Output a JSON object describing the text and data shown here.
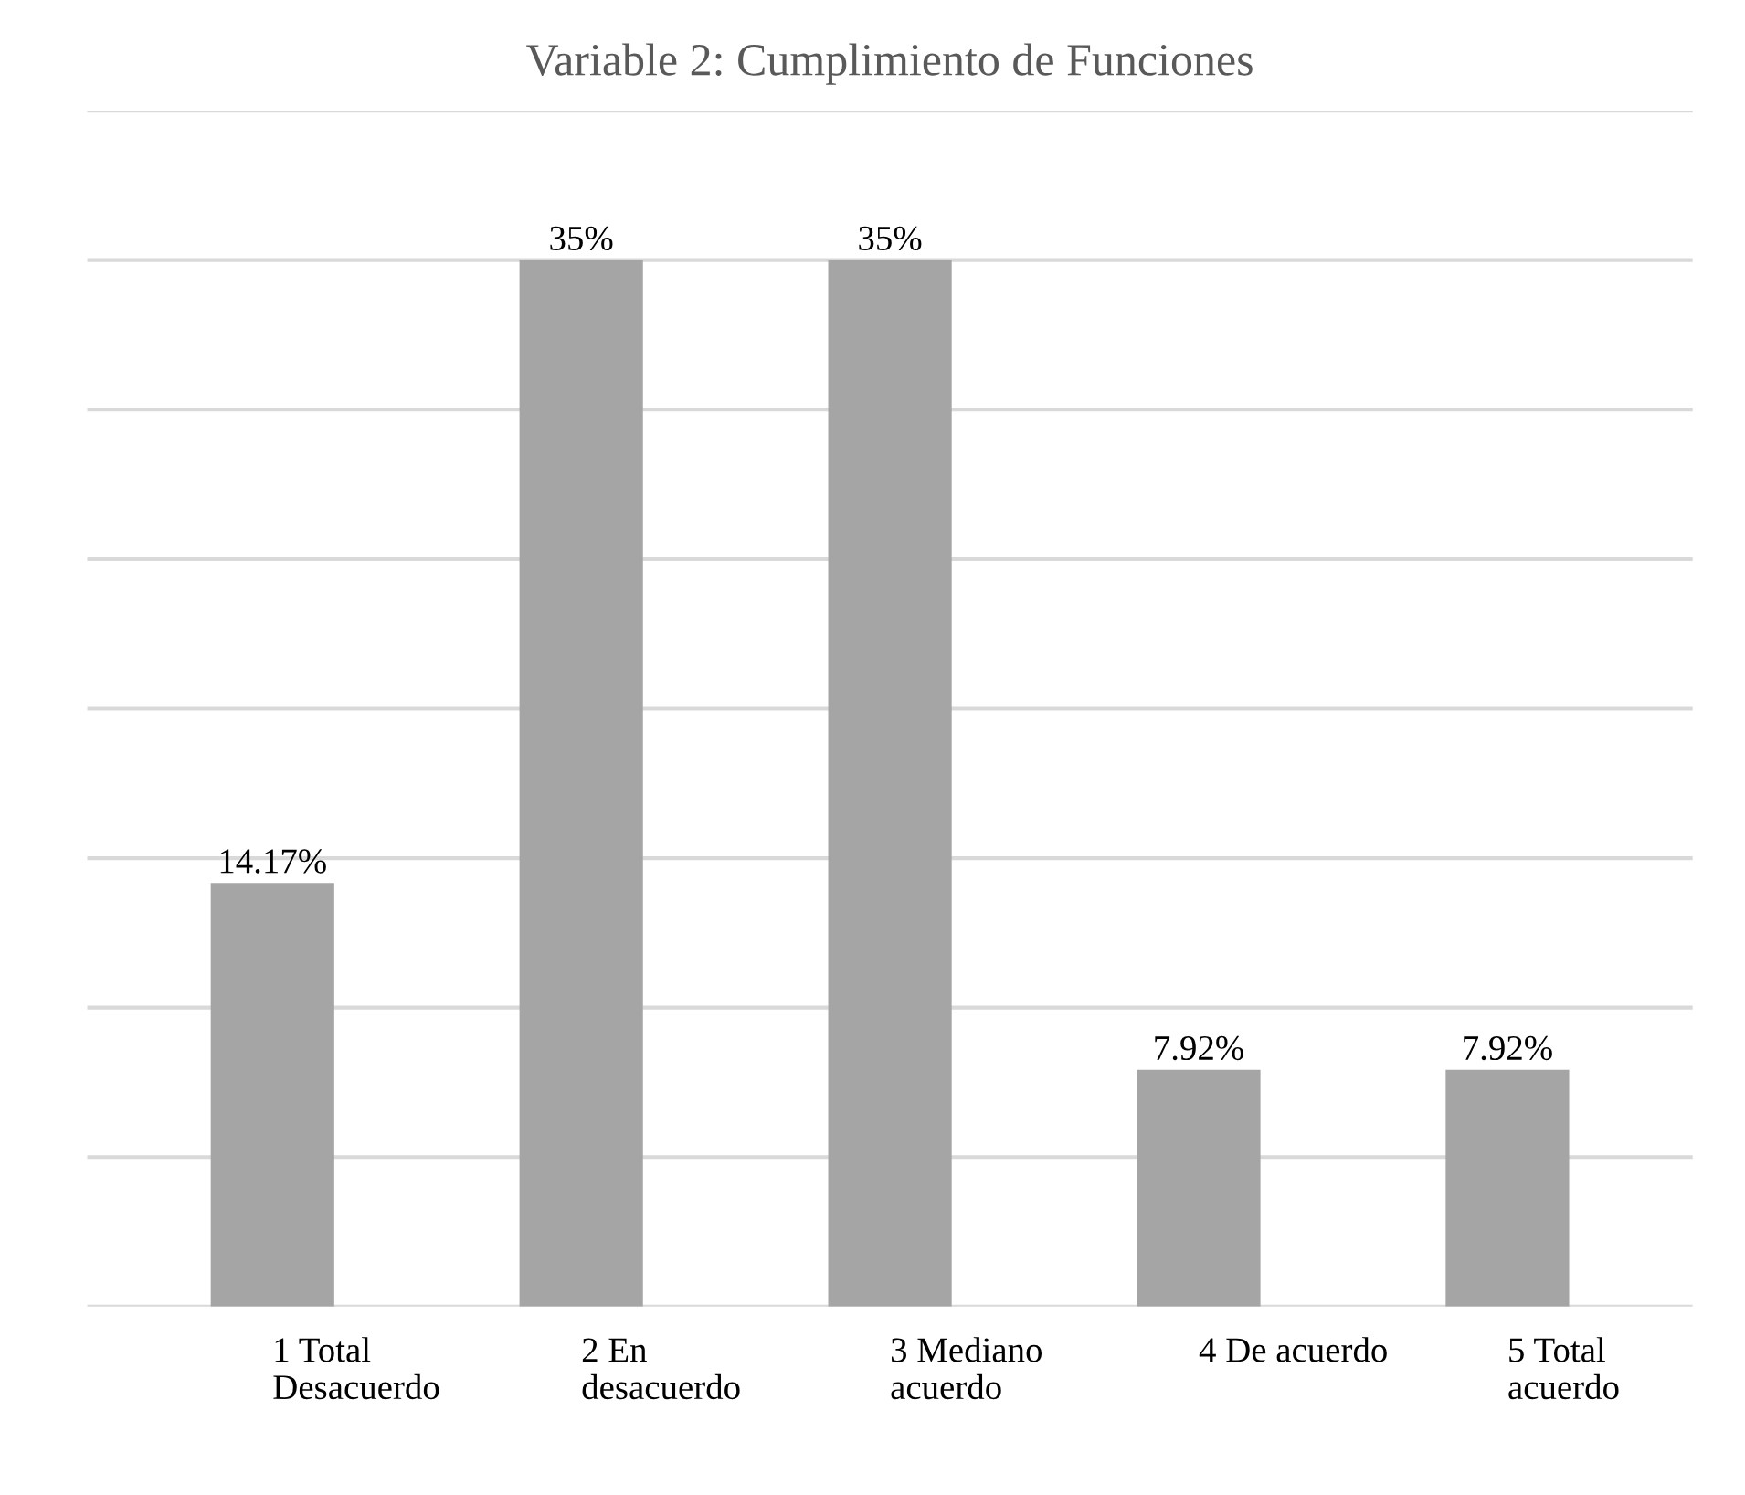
{
  "chart_data": {
    "type": "bar",
    "title": "Variable 2: Cumplimiento de Funciones",
    "categories": [
      "1 Total\nDesacuerdo",
      "2 En\ndesacuerdo",
      "3 Mediano\nacuerdo",
      "4 De acuerdo",
      "5 Total\nacuerdo"
    ],
    "values": [
      14.17,
      35,
      35,
      7.92,
      7.92
    ],
    "value_labels": [
      "14.17%",
      "35%",
      "35%",
      "7.92%",
      "7.92%"
    ],
    "color": "#a5a5a5",
    "relative": false,
    "ylim": [
      0,
      40
    ],
    "yticks": [
      {
        "value": 0,
        "label": null
      },
      {
        "value": 5,
        "label": null
      },
      {
        "value": 10,
        "label": null
      },
      {
        "value": 15,
        "label": null
      },
      {
        "value": 20,
        "label": null
      },
      {
        "value": 25,
        "label": null
      },
      {
        "value": 30,
        "label": null
      },
      {
        "value": 35,
        "label": null
      },
      {
        "value": 40,
        "label": null
      }
    ],
    "grid": "y",
    "legend": false
  }
}
